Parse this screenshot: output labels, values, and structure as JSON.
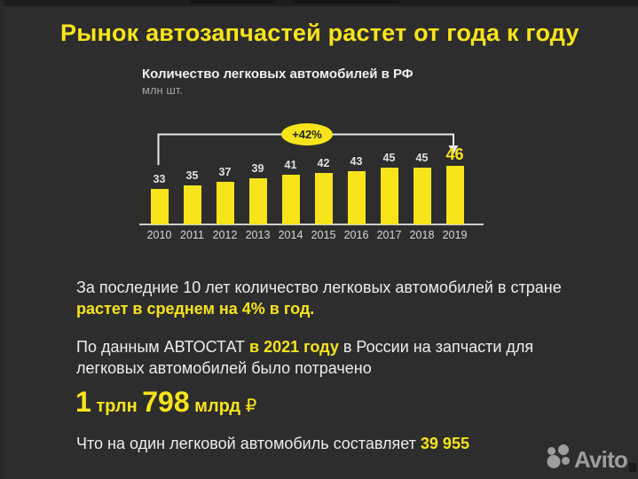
{
  "page": {
    "title": "Рынок автозапчастей растет от года к году",
    "background": "#2d2d2d",
    "accent": "#f7e41b"
  },
  "chart_data": {
    "type": "bar",
    "title": "Количество легковых автомобилей в РФ",
    "ylabel": "млн шт.",
    "categories": [
      "2010",
      "2011",
      "2012",
      "2013",
      "2014",
      "2015",
      "2016",
      "2017",
      "2018",
      "2019"
    ],
    "values": [
      33,
      35,
      37,
      39,
      41,
      42,
      43,
      45,
      45,
      46
    ],
    "growth_badge": "+42%",
    "bar_color": "#f7e41b",
    "highlight_last_value": true,
    "grid": "off",
    "legend": "none",
    "ylim": [
      13,
      50
    ]
  },
  "facts": {
    "p1_line1": "За последние 10 лет количество легковых автомобилей в стране",
    "p1_line2": "растет в среднем на 4% в год.",
    "p2_prefix": "По данным АВТОСТАТ ",
    "p2_highlight": "в 2021 году",
    "p2_suffix": " в России на запчасти для",
    "p2_line2": "легковых автомобилей было потрачено",
    "amount_n1": "1",
    "amount_u1": " трлн ",
    "amount_n2": "798",
    "amount_u2": " млрд ",
    "amount_currency": "₽",
    "p3_text": "Что на один легковой автомобиль составляет ",
    "p3_highlight": "39 955"
  },
  "footer": {
    "brand": "Avito"
  }
}
